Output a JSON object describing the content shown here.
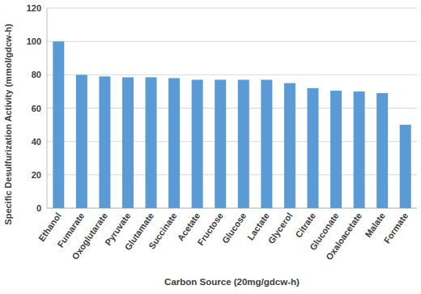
{
  "chart_data": {
    "type": "bar",
    "x_label": "Carbon Source (20mg/gdcw-h)",
    "y_label": "Specific Desulfurization Activity (mmol/gdcw-h)",
    "categories": [
      "Ethanol",
      "Fumarate",
      "Oxoglutarate",
      "Pyruvate",
      "Glutamate",
      "Succinate",
      "Acetate",
      "Fructose",
      "Glucose",
      "Lactate",
      "Glycerol",
      "Citrate",
      "Gluconate",
      "Oxaloacetate",
      "Malate",
      "Formate"
    ],
    "values": [
      100,
      80,
      79,
      78.5,
      78.5,
      78,
      77,
      77,
      77,
      77,
      75,
      72,
      70.5,
      70,
      69,
      50
    ],
    "color": "#5b9bd5",
    "ylim": [
      0,
      120
    ],
    "yticks": [
      0,
      20,
      40,
      60,
      80,
      100,
      120
    ],
    "grid": true
  }
}
